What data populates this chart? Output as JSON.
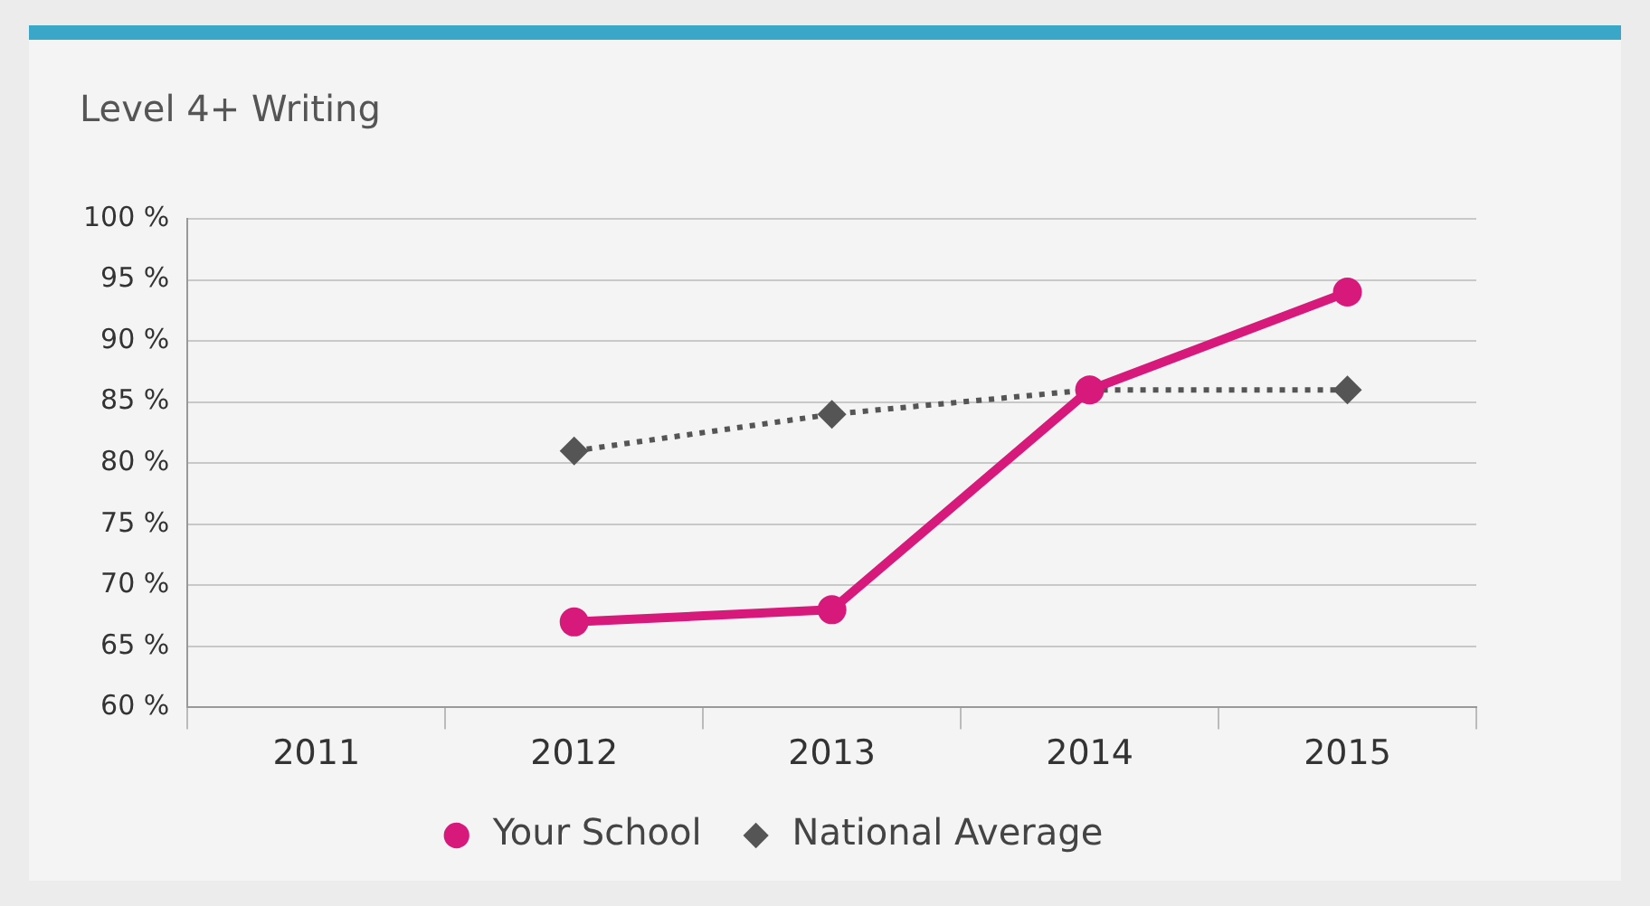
{
  "chart_data": {
    "type": "line",
    "title": "Level 4+ Writing",
    "categories": [
      "2011",
      "2012",
      "2013",
      "2014",
      "2015"
    ],
    "series": [
      {
        "name": "Your School",
        "color": "#d6197a",
        "values": [
          null,
          67,
          68,
          86,
          94
        ],
        "marker": "circle",
        "line_style": "solid"
      },
      {
        "name": "National Average",
        "color": "#555555",
        "values": [
          null,
          81,
          84,
          86,
          86
        ],
        "marker": "diamond",
        "line_style": "dotted"
      }
    ],
    "ylim": [
      60,
      100
    ],
    "yticks": [
      {
        "value": 60,
        "label": "60 %"
      },
      {
        "value": 65,
        "label": "65 %"
      },
      {
        "value": 70,
        "label": "70 %"
      },
      {
        "value": 75,
        "label": "75 %"
      },
      {
        "value": 80,
        "label": "80 %"
      },
      {
        "value": 85,
        "label": "85 %"
      },
      {
        "value": 90,
        "label": "90 %"
      },
      {
        "value": 95,
        "label": "95 %"
      },
      {
        "value": 100,
        "label": "100 %"
      }
    ],
    "grid": "y",
    "legend": "bottom"
  }
}
